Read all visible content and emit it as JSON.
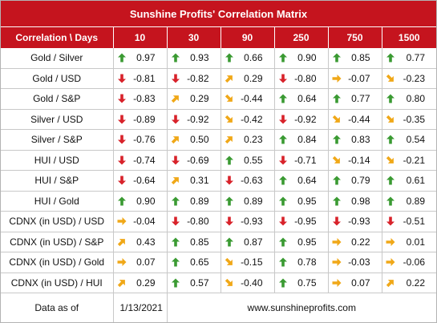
{
  "title": "Sunshine Profits' Correlation Matrix",
  "header": {
    "label": "Correlation \\ Days",
    "periods": [
      "10",
      "30",
      "90",
      "250",
      "750",
      "1500"
    ]
  },
  "colors": {
    "up": "#3a9a32",
    "down": "#d8222a",
    "diag_up": "#f0a818",
    "diag_down": "#f0a818",
    "flat": "#f0a818"
  },
  "rows": [
    {
      "label": "Gold / Silver",
      "cells": [
        {
          "v": "0.97",
          "a": "up-icon"
        },
        {
          "v": "0.93",
          "a": "up-icon"
        },
        {
          "v": "0.66",
          "a": "up-icon"
        },
        {
          "v": "0.90",
          "a": "up-icon"
        },
        {
          "v": "0.85",
          "a": "up-icon"
        },
        {
          "v": "0.77",
          "a": "up-icon"
        }
      ]
    },
    {
      "label": "Gold / USD",
      "cells": [
        {
          "v": "-0.81",
          "a": "down-icon"
        },
        {
          "v": "-0.82",
          "a": "down-icon"
        },
        {
          "v": "0.29",
          "a": "diag-up-icon"
        },
        {
          "v": "-0.80",
          "a": "down-icon"
        },
        {
          "v": "-0.07",
          "a": "right-icon"
        },
        {
          "v": "-0.23",
          "a": "diag-down-icon"
        }
      ]
    },
    {
      "label": "Gold / S&P",
      "cells": [
        {
          "v": "-0.83",
          "a": "down-icon"
        },
        {
          "v": "0.29",
          "a": "diag-up-icon"
        },
        {
          "v": "-0.44",
          "a": "diag-down-icon"
        },
        {
          "v": "0.64",
          "a": "up-icon"
        },
        {
          "v": "0.77",
          "a": "up-icon"
        },
        {
          "v": "0.80",
          "a": "up-icon"
        }
      ]
    },
    {
      "label": "Silver / USD",
      "cells": [
        {
          "v": "-0.89",
          "a": "down-icon"
        },
        {
          "v": "-0.92",
          "a": "down-icon"
        },
        {
          "v": "-0.42",
          "a": "diag-down-icon"
        },
        {
          "v": "-0.92",
          "a": "down-icon"
        },
        {
          "v": "-0.44",
          "a": "diag-down-icon"
        },
        {
          "v": "-0.35",
          "a": "diag-down-icon"
        }
      ]
    },
    {
      "label": "Silver / S&P",
      "cells": [
        {
          "v": "-0.76",
          "a": "down-icon"
        },
        {
          "v": "0.50",
          "a": "diag-up-icon"
        },
        {
          "v": "0.23",
          "a": "diag-up-icon"
        },
        {
          "v": "0.84",
          "a": "up-icon"
        },
        {
          "v": "0.83",
          "a": "up-icon"
        },
        {
          "v": "0.54",
          "a": "up-icon"
        }
      ]
    },
    {
      "label": "HUI / USD",
      "cells": [
        {
          "v": "-0.74",
          "a": "down-icon"
        },
        {
          "v": "-0.69",
          "a": "down-icon"
        },
        {
          "v": "0.55",
          "a": "up-icon"
        },
        {
          "v": "-0.71",
          "a": "down-icon"
        },
        {
          "v": "-0.14",
          "a": "diag-down-icon"
        },
        {
          "v": "-0.21",
          "a": "diag-down-icon"
        }
      ]
    },
    {
      "label": "HUI / S&P",
      "cells": [
        {
          "v": "-0.64",
          "a": "down-icon"
        },
        {
          "v": "0.31",
          "a": "diag-up-icon"
        },
        {
          "v": "-0.63",
          "a": "down-icon"
        },
        {
          "v": "0.64",
          "a": "up-icon"
        },
        {
          "v": "0.79",
          "a": "up-icon"
        },
        {
          "v": "0.61",
          "a": "up-icon"
        }
      ]
    },
    {
      "label": "HUI / Gold",
      "cells": [
        {
          "v": "0.90",
          "a": "up-icon"
        },
        {
          "v": "0.89",
          "a": "up-icon"
        },
        {
          "v": "0.89",
          "a": "up-icon"
        },
        {
          "v": "0.95",
          "a": "up-icon"
        },
        {
          "v": "0.98",
          "a": "up-icon"
        },
        {
          "v": "0.89",
          "a": "up-icon"
        }
      ]
    },
    {
      "label": "CDNX (in USD) / USD",
      "cells": [
        {
          "v": "-0.04",
          "a": "right-icon"
        },
        {
          "v": "-0.80",
          "a": "down-icon"
        },
        {
          "v": "-0.93",
          "a": "down-icon"
        },
        {
          "v": "-0.95",
          "a": "down-icon"
        },
        {
          "v": "-0.93",
          "a": "down-icon"
        },
        {
          "v": "-0.51",
          "a": "down-icon"
        }
      ]
    },
    {
      "label": "CDNX (in USD) / S&P",
      "cells": [
        {
          "v": "0.43",
          "a": "diag-up-icon"
        },
        {
          "v": "0.85",
          "a": "up-icon"
        },
        {
          "v": "0.87",
          "a": "up-icon"
        },
        {
          "v": "0.95",
          "a": "up-icon"
        },
        {
          "v": "0.22",
          "a": "right-icon"
        },
        {
          "v": "0.01",
          "a": "right-icon"
        }
      ]
    },
    {
      "label": "CDNX (in USD) / Gold",
      "cells": [
        {
          "v": "0.07",
          "a": "right-icon"
        },
        {
          "v": "0.65",
          "a": "up-icon"
        },
        {
          "v": "-0.15",
          "a": "diag-down-icon"
        },
        {
          "v": "0.78",
          "a": "up-icon"
        },
        {
          "v": "-0.03",
          "a": "right-icon"
        },
        {
          "v": "-0.06",
          "a": "right-icon"
        }
      ]
    },
    {
      "label": "CDNX (in USD) / HUI",
      "cells": [
        {
          "v": "0.29",
          "a": "diag-up-icon"
        },
        {
          "v": "0.57",
          "a": "up-icon"
        },
        {
          "v": "-0.40",
          "a": "diag-down-icon"
        },
        {
          "v": "0.75",
          "a": "up-icon"
        },
        {
          "v": "0.07",
          "a": "right-icon"
        },
        {
          "v": "0.22",
          "a": "diag-up-icon"
        }
      ]
    }
  ],
  "footer": {
    "label": "Data as of",
    "date": "1/13/2021",
    "site": "www.sunshineprofits.com"
  }
}
